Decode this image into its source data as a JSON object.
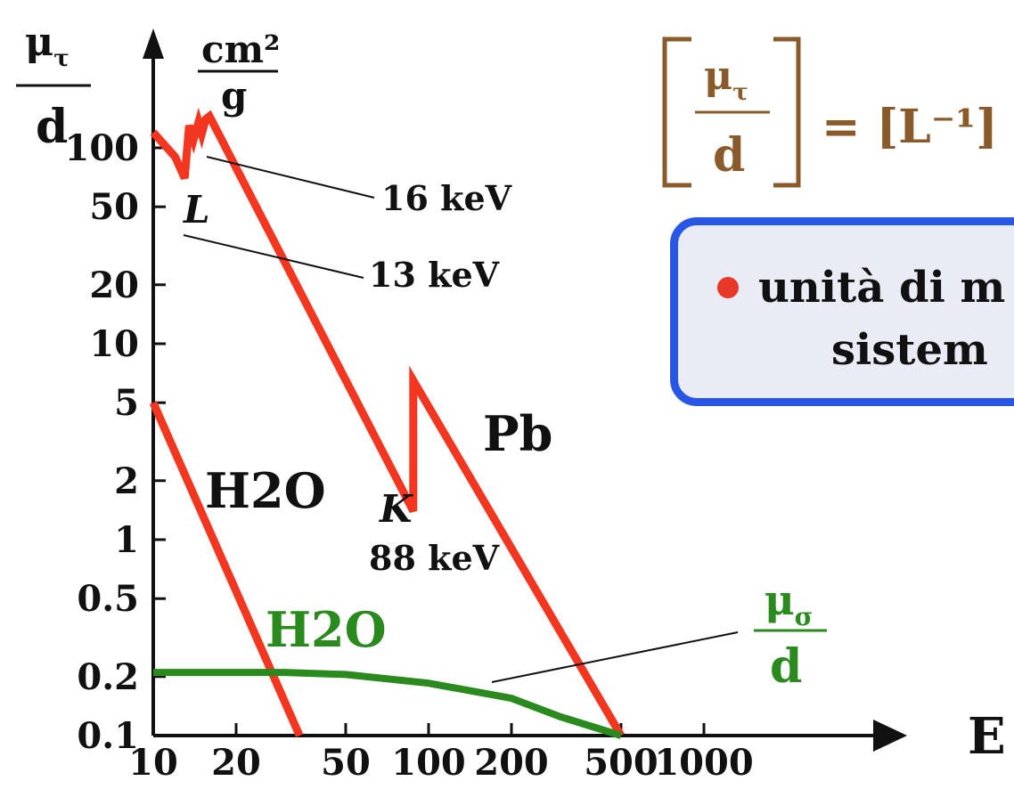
{
  "chart_data": {
    "type": "line",
    "xlabel": "E",
    "x_scale": "log",
    "y_scale": "log",
    "xlim": [
      10,
      1000
    ],
    "ylim": [
      0.1,
      150
    ],
    "x_ticks": [
      10,
      20,
      50,
      100,
      200,
      500,
      1000
    ],
    "x_tick_labels": [
      "10",
      "20",
      "50",
      "100",
      "200",
      "500",
      "1000"
    ],
    "y_ticks": [
      0.1,
      0.2,
      0.5,
      1,
      2,
      5,
      10,
      20,
      50,
      100
    ],
    "y_tick_labels": [
      "0.1",
      "0.2",
      "0.5",
      "1",
      "2",
      "5",
      "10",
      "20",
      "50",
      "100"
    ],
    "y_label_fraction": {
      "numerator": "μτ",
      "denominator": "d"
    },
    "y_unit": {
      "numerator": "cm²",
      "denominator": "g"
    },
    "series": [
      {
        "name": "Pb",
        "color": "#f2361f",
        "x": [
          10,
          12,
          13,
          13.5,
          14,
          14.6,
          15,
          15.5,
          16,
          88,
          88,
          500
        ],
        "y": [
          120,
          90,
          70,
          130,
          110,
          135,
          118,
          140,
          145,
          1.4,
          6.5,
          0.1
        ]
      },
      {
        "name": "H2O",
        "color": "#f2361f",
        "x": [
          10,
          34
        ],
        "y": [
          5,
          0.1
        ]
      },
      {
        "name": "H2O",
        "color": "#2a8a1e",
        "x": [
          10,
          20,
          30,
          50,
          100,
          200,
          300,
          500
        ],
        "y": [
          0.21,
          0.21,
          0.21,
          0.205,
          0.185,
          0.155,
          0.125,
          0.1
        ]
      }
    ],
    "annotations": [
      {
        "text": "16 keV"
      },
      {
        "text": "L"
      },
      {
        "text": "13 keV"
      },
      {
        "text": "K"
      },
      {
        "text": "88 keV"
      }
    ],
    "green_label": {
      "numerator": "μσ",
      "denominator": "d"
    }
  },
  "formula": {
    "numerator": "μτ",
    "denominator": "d",
    "rhs": "= [L⁻¹]"
  },
  "infobox": {
    "line1": "unità di m",
    "line2": "sistem"
  },
  "colors": {
    "attenuation_line": "#f2361f",
    "scatter_line": "#2a8a1e",
    "formula": "#8b5a2b",
    "box_border": "#2a56e6"
  }
}
